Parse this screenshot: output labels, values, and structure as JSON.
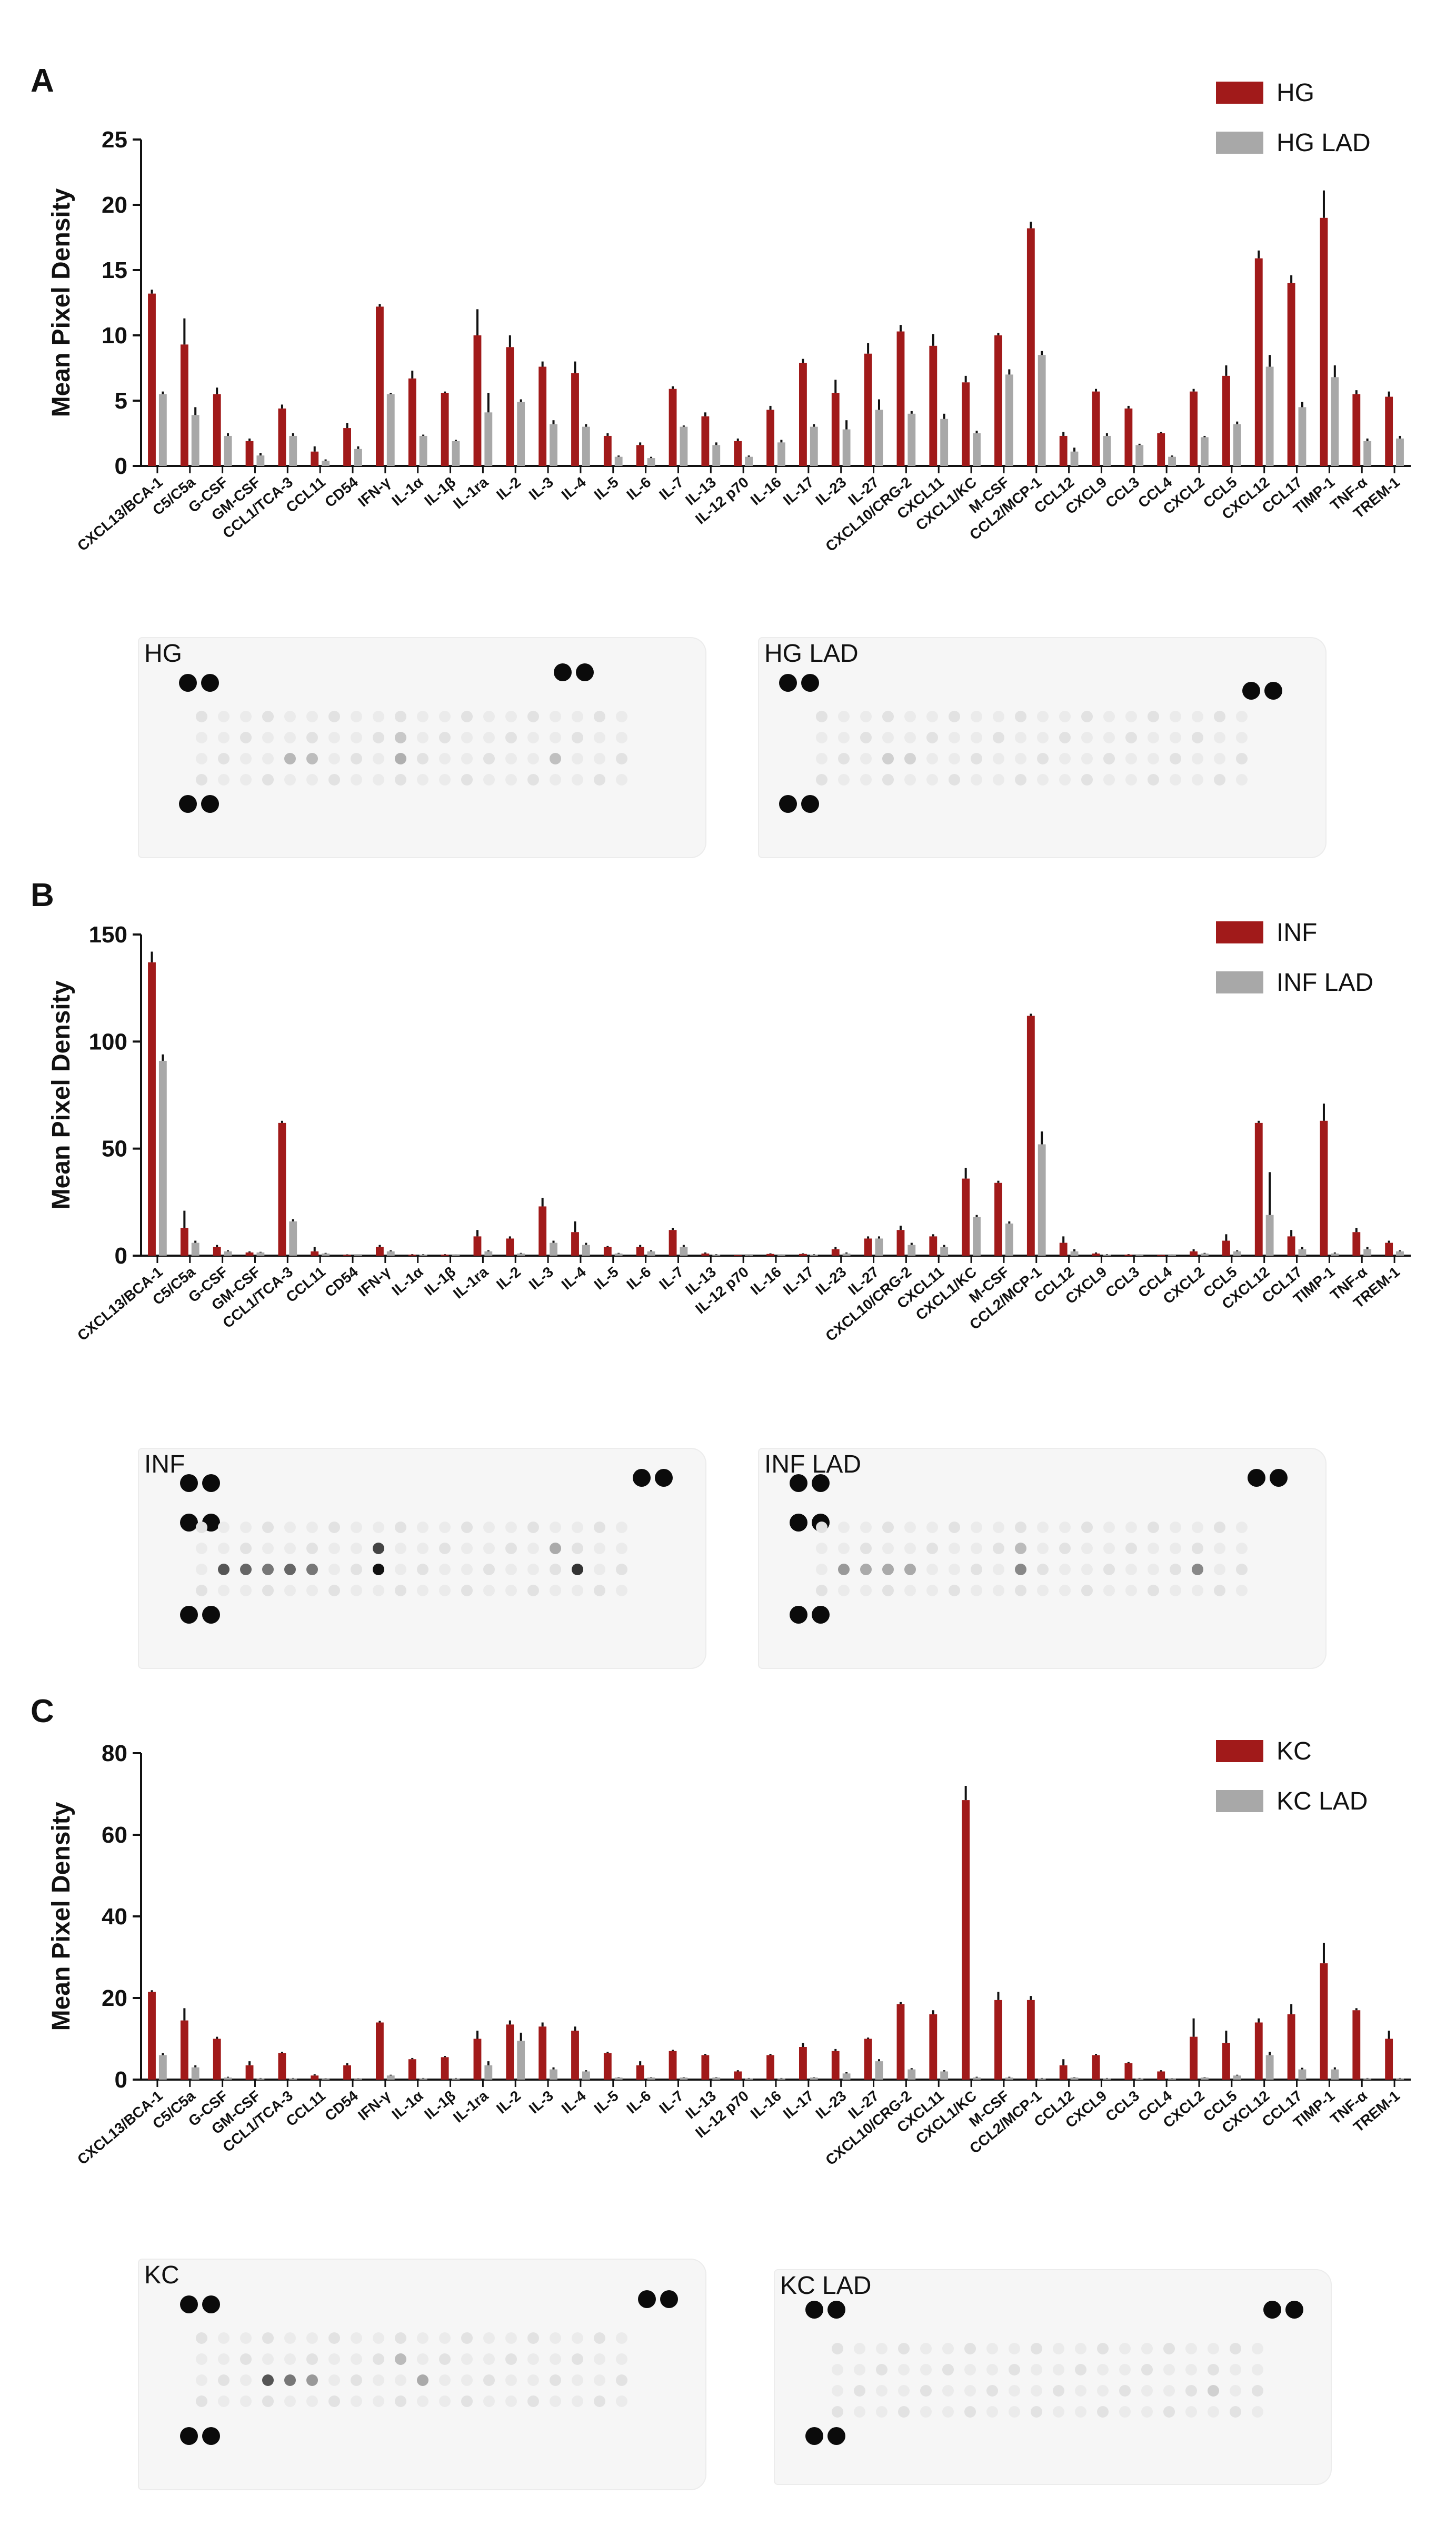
{
  "labels": [
    "CXCL13/BCA-1",
    "C5/C5a",
    "G-CSF",
    "GM-CSF",
    "CCL1/TCA-3",
    "CCL11",
    "CD54",
    "IFN-γ",
    "IL-1α",
    "IL-1β",
    "IL-1ra",
    "IL-2",
    "IL-3",
    "IL-4",
    "IL-5",
    "IL-6",
    "IL-7",
    "IL-13",
    "IL-12 p70",
    "IL-16",
    "IL-17",
    "IL-23",
    "IL-27",
    "CXCL10/CRG-2",
    "CXCL11",
    "CXCL1/KC",
    "M-CSF",
    "CCL2/MCP-1",
    "CCL12",
    "CXCL9",
    "CCL3",
    "CCL4",
    "CXCL2",
    "CCL5",
    "CXCL12",
    "CCL17",
    "TIMP-1",
    "TNF-α",
    "TREM-1"
  ],
  "colors": {
    "primary": "#a11a1a",
    "lad": "#a8a8a8",
    "blot_bg": "#f6f6f6"
  },
  "panels": [
    {
      "letter": "A",
      "blot_labels": [
        "HG",
        "HG LAD"
      ],
      "chart_data": {
        "type": "bar",
        "title": "",
        "xlabel": "",
        "ylabel": "Mean Pixel Density",
        "ylim": [
          0,
          25
        ],
        "yticks": [
          "0",
          "5",
          "10",
          "15",
          "20",
          "25"
        ],
        "ytick_values": [
          0,
          5,
          10,
          15,
          20,
          25
        ],
        "legend_position": "top-right",
        "series": [
          {
            "name": "HG",
            "values": [
              13.2,
              9.3,
              5.5,
              1.9,
              4.4,
              1.1,
              2.9,
              12.2,
              6.7,
              5.6,
              10.0,
              9.1,
              7.6,
              7.1,
              2.3,
              1.6,
              5.9,
              3.8,
              1.9,
              4.3,
              7.9,
              5.6,
              8.6,
              10.3,
              9.2,
              6.4,
              10.0,
              18.2,
              2.3,
              5.7,
              4.4,
              2.5,
              5.7,
              6.9,
              15.9,
              14.0,
              19.0,
              5.5,
              5.3
            ],
            "errors": [
              0.3,
              2.0,
              0.5,
              0.2,
              0.3,
              0.4,
              0.4,
              0.2,
              0.6,
              0.1,
              2.0,
              0.9,
              0.4,
              0.9,
              0.2,
              0.2,
              0.2,
              0.3,
              0.2,
              0.3,
              0.3,
              1.0,
              0.8,
              0.5,
              0.9,
              0.5,
              0.2,
              0.5,
              0.3,
              0.2,
              0.2,
              0.1,
              0.2,
              0.8,
              0.6,
              0.6,
              2.1,
              0.3,
              0.4
            ]
          },
          {
            "name": "HG LAD",
            "values": [
              5.5,
              3.9,
              2.3,
              0.8,
              2.3,
              0.4,
              1.3,
              5.5,
              2.3,
              1.9,
              4.1,
              4.9,
              3.2,
              3.0,
              0.7,
              0.6,
              3.0,
              1.6,
              0.7,
              1.8,
              3.0,
              2.8,
              4.3,
              4.0,
              3.6,
              2.5,
              7.0,
              8.5,
              1.1,
              2.3,
              1.6,
              0.7,
              2.2,
              3.2,
              7.6,
              4.5,
              6.8,
              1.9,
              2.1
            ],
            "errors": [
              0.2,
              0.6,
              0.2,
              0.2,
              0.2,
              0.1,
              0.2,
              0.1,
              0.1,
              0.1,
              1.5,
              0.2,
              0.3,
              0.2,
              0.1,
              0.1,
              0.1,
              0.2,
              0.1,
              0.2,
              0.2,
              0.7,
              0.8,
              0.2,
              0.4,
              0.2,
              0.4,
              0.3,
              0.3,
              0.2,
              0.1,
              0.1,
              0.1,
              0.2,
              0.9,
              0.4,
              0.9,
              0.2,
              0.2
            ]
          }
        ]
      }
    },
    {
      "letter": "B",
      "blot_labels": [
        "INF",
        "INF LAD"
      ],
      "chart_data": {
        "type": "bar",
        "title": "",
        "xlabel": "",
        "ylabel": "Mean Pixel Density",
        "ylim": [
          0,
          150
        ],
        "yticks": [
          "0",
          "50",
          "100",
          "150"
        ],
        "ytick_values": [
          0,
          50,
          100,
          150
        ],
        "legend_position": "top-right",
        "series": [
          {
            "name": "INF",
            "values": [
              137,
              13,
              4,
              1.5,
              62,
              2,
              0.4,
              4,
              0.5,
              0.5,
              9,
              8,
              23,
              11,
              4,
              4,
              12,
              1,
              0.2,
              0.8,
              0.8,
              3,
              8,
              12,
              9,
              36,
              34,
              112,
              6,
              1,
              0.5,
              0.3,
              2,
              7,
              62,
              9,
              63,
              11,
              6
            ],
            "errors": [
              5,
              8,
              1,
              0.5,
              1,
              2,
              0.2,
              1,
              0.2,
              0.2,
              3,
              1,
              4,
              5,
              0.5,
              1,
              1,
              0.5,
              0.1,
              0.3,
              0.3,
              1,
              1,
              2,
              1,
              5,
              1,
              1,
              3,
              0.5,
              0.2,
              0.1,
              1,
              3,
              1,
              3,
              8,
              2,
              1
            ]
          },
          {
            "name": "INF LAD",
            "values": [
              91,
              6,
              2,
              1.5,
              16,
              1,
              0.2,
              2,
              0.5,
              0.3,
              2,
              1,
              6,
              5,
              1,
              2,
              4,
              0.5,
              0.1,
              0.3,
              0.5,
              1,
              8,
              5,
              4,
              18,
              15,
              52,
              2,
              0.5,
              0.3,
              0.3,
              1,
              2,
              19,
              3,
              1,
              3,
              2
            ],
            "errors": [
              3,
              1,
              0.5,
              0.3,
              1,
              0.3,
              0.1,
              0.5,
              0.2,
              0.1,
              0.5,
              0.3,
              1,
              1,
              0.3,
              0.5,
              1,
              0.2,
              0.1,
              0.1,
              0.2,
              0.5,
              1,
              1,
              1,
              1,
              1,
              6,
              1,
              0.2,
              0.1,
              0.1,
              0.3,
              0.5,
              20,
              1,
              0.5,
              1,
              0.5
            ]
          }
        ]
      }
    },
    {
      "letter": "C",
      "blot_labels": [
        "KC",
        "KC LAD"
      ],
      "chart_data": {
        "type": "bar",
        "title": "",
        "xlabel": "",
        "ylabel": "Mean Pixel Density",
        "ylim": [
          0,
          80
        ],
        "yticks": [
          "0",
          "20",
          "40",
          "60",
          "80"
        ],
        "ytick_values": [
          0,
          20,
          40,
          60,
          80
        ],
        "legend_position": "top-right",
        "series": [
          {
            "name": "KC",
            "values": [
              21.5,
              14.5,
              10,
              3.5,
              6.5,
              1,
              3.5,
              14,
              5,
              5.5,
              10,
              13.5,
              13,
              12,
              6.5,
              3.5,
              7,
              6,
              2,
              6,
              8,
              7,
              10,
              18.5,
              16,
              68.5,
              19.5,
              19.5,
              3.5,
              6,
              4,
              2,
              10.5,
              9,
              14,
              16,
              28.5,
              17,
              10
            ],
            "errors": [
              0.4,
              3,
              0.5,
              1,
              0.3,
              0.3,
              0.5,
              0.4,
              0.3,
              0.3,
              2,
              1,
              1,
              1,
              0.3,
              1,
              0.3,
              0.3,
              0.3,
              0.3,
              1,
              0.5,
              0.3,
              0.5,
              1,
              3.5,
              2,
              1,
              1.5,
              0.3,
              0.3,
              0.3,
              4.5,
              3,
              1,
              2.5,
              5,
              0.5,
              2
            ]
          },
          {
            "name": "KC LAD",
            "values": [
              6,
              3,
              0.5,
              0.3,
              0.3,
              0.2,
              0.2,
              1,
              0.3,
              0.3,
              3.5,
              9.5,
              2.5,
              2,
              0.5,
              0.5,
              0.5,
              0.5,
              0.3,
              0.3,
              0.5,
              1.5,
              4.5,
              2.5,
              2,
              0.5,
              0.5,
              0.3,
              0.5,
              0.3,
              0.3,
              0.2,
              0.5,
              1,
              6,
              2.5,
              2.5,
              0.3,
              0.3
            ],
            "errors": [
              0.5,
              0.5,
              0.2,
              0.1,
              0.1,
              0.1,
              0.1,
              0.2,
              0.1,
              0.1,
              1,
              2,
              0.5,
              0.3,
              0.1,
              0.1,
              0.1,
              0.1,
              0.1,
              0.1,
              0.1,
              0.3,
              0.5,
              0.3,
              0.3,
              0.2,
              0.2,
              0.1,
              0.1,
              0.1,
              0.1,
              0.1,
              0.1,
              0.2,
              0.8,
              0.4,
              0.5,
              0.1,
              0.1
            ]
          }
        ]
      }
    }
  ]
}
